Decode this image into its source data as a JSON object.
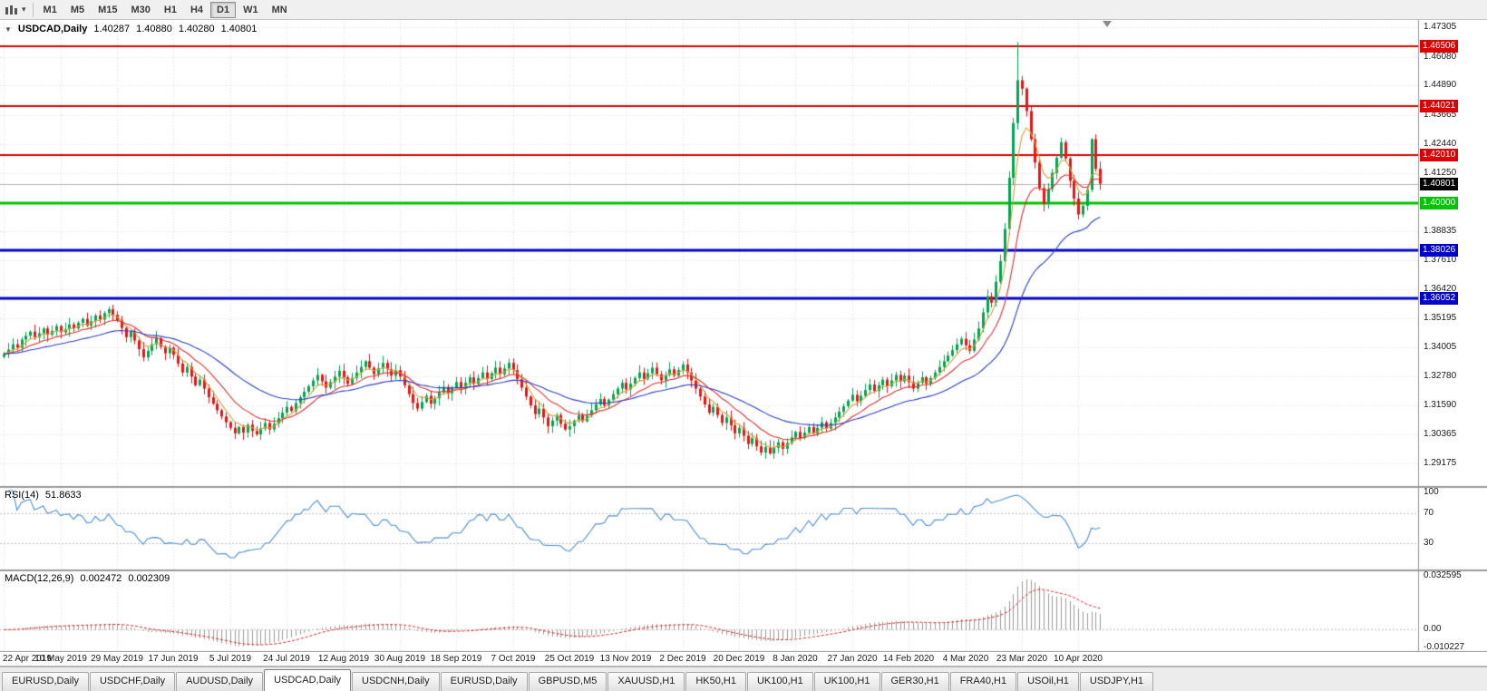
{
  "toolbar": {
    "chart_type_icon": "candlestick-chart-icon",
    "dropdown_caret": "▾",
    "timeframes": [
      "M1",
      "M5",
      "M15",
      "M30",
      "H1",
      "H4",
      "D1",
      "W1",
      "MN"
    ],
    "active_timeframe": "D1"
  },
  "chart_header": {
    "collapse_icon": "▼",
    "title": "USDCAD,Daily",
    "open": "1.40287",
    "high": "1.40880",
    "low": "1.40280",
    "close": "1.40801"
  },
  "rsi": {
    "label": "RSI(14)",
    "value": "51.8633",
    "levels": [
      "100",
      "70",
      "30"
    ],
    "line_color": "#4f8fd0"
  },
  "macd": {
    "label": "MACD(12,26,9)",
    "value_main": "0.002472",
    "value_signal": "0.002309",
    "axis": [
      "0.032595",
      "0.00",
      "-0.010227"
    ]
  },
  "tabs": {
    "items": [
      "EURUSD,Daily",
      "USDCHF,Daily",
      "AUDUSD,Daily",
      "USDCAD,Daily",
      "USDCNH,Daily",
      "EURUSD,Daily",
      "GBPUSD,M5",
      "XAUUSD,H1",
      "HK50,H1",
      "UK100,H1",
      "UK100,H1",
      "GER30,H1",
      "FRA40,H1",
      "USOil,H1",
      "USDJPY,H1"
    ],
    "active_index": 3
  },
  "colors": {
    "grid": "#dcdcdc",
    "axis_separator": "#9a9a9a",
    "current_price_line": "#b5b5b5",
    "histogram": "#9a9a9a",
    "signal": "#e02020"
  },
  "chart_data": {
    "type": "candlestick",
    "title": "USDCAD,Daily",
    "symbol": "USDCAD",
    "timeframe": "Daily",
    "x_labels": [
      "22 Apr 2019",
      "10 May 2019",
      "29 May 2019",
      "17 Jun 2019",
      "5 Jul 2019",
      "24 Jul 2019",
      "12 Aug 2019",
      "30 Aug 2019",
      "18 Sep 2019",
      "7 Oct 2019",
      "25 Oct 2019",
      "13 Nov 2019",
      "2 Dec 2019",
      "20 Dec 2019",
      "8 Jan 2020",
      "27 Jan 2020",
      "14 Feb 2020",
      "4 Mar 2020",
      "23 Mar 2020",
      "10 Apr 2020"
    ],
    "label_step": 13,
    "y_axis_labels": [
      "1.47305",
      "1.46080",
      "1.44890",
      "1.43665",
      "1.42440",
      "1.41250",
      "1.38835",
      "1.37610",
      "1.36420",
      "1.35195",
      "1.34005",
      "1.32780",
      "1.31590",
      "1.30365",
      "1.29175"
    ],
    "price_range": [
      1.2819,
      1.4761
    ],
    "current_price": 1.40801,
    "levels": [
      {
        "label": "1.46506",
        "price": 1.46506,
        "color": "#dd0000",
        "width": 2,
        "type": "resistance"
      },
      {
        "label": "1.44021",
        "price": 1.44021,
        "color": "#dd0000",
        "width": 2,
        "type": "resistance"
      },
      {
        "label": "1.42010",
        "price": 1.4201,
        "color": "#dd0000",
        "width": 2,
        "type": "resistance"
      },
      {
        "label": "1.40000",
        "price": 1.4,
        "color": "#00c400",
        "width": 3,
        "type": "pivot"
      },
      {
        "label": "1.38026",
        "price": 1.38026,
        "color": "#0000cc",
        "width": 3,
        "type": "support"
      },
      {
        "label": "1.36052",
        "price": 1.36052,
        "color": "#0000cc",
        "width": 3,
        "type": "support"
      }
    ],
    "moving_averages": [
      {
        "type": "ema",
        "period": 5,
        "color": "#d6a13d"
      },
      {
        "type": "ema",
        "period": 13,
        "color": "#e03131"
      },
      {
        "type": "ema",
        "period": 34,
        "color": "#2b3fc4"
      }
    ],
    "candle_up_color": "#00a651",
    "candle_down_color": "#e81515",
    "rsi_period": 14,
    "macd_params": {
      "fast": 12,
      "slow": 26,
      "signal": 9
    },
    "macd_range": [
      -0.010227,
      0.032595
    ],
    "rsi_range": [
      0,
      100
    ],
    "closes": [
      1.3372,
      1.339,
      1.3412,
      1.3398,
      1.3432,
      1.3448,
      1.3465,
      1.3442,
      1.3458,
      1.3478,
      1.3452,
      1.3468,
      1.3488,
      1.3462,
      1.3475,
      1.3495,
      1.3478,
      1.3502,
      1.3518,
      1.349,
      1.3508,
      1.3532,
      1.3515,
      1.3542,
      1.3558,
      1.3535,
      1.3512,
      1.348,
      1.3442,
      1.3465,
      1.3428,
      1.3392,
      1.3358,
      1.3385,
      1.3412,
      1.3438,
      1.3402,
      1.3375,
      1.3398,
      1.3368,
      1.3332,
      1.3295,
      1.3318,
      1.3278,
      1.3242,
      1.3265,
      1.3228,
      1.3192,
      1.3165,
      1.3138,
      1.3112,
      1.3088,
      1.3065,
      1.3042,
      1.3068,
      1.3045,
      1.3078,
      1.3052,
      1.3038,
      1.3062,
      1.3085,
      1.3058,
      1.3082,
      1.3105,
      1.3128,
      1.3152,
      1.3135,
      1.3168,
      1.3192,
      1.3215,
      1.3238,
      1.3262,
      1.3285,
      1.3258,
      1.3232,
      1.3255,
      1.3278,
      1.3302,
      1.3275,
      1.3248,
      1.3272,
      1.3295,
      1.3318,
      1.3342,
      1.3315,
      1.3288,
      1.3312,
      1.3335,
      1.3308,
      1.3282,
      1.3305,
      1.3278,
      1.3242,
      1.3205,
      1.3168,
      1.3145,
      1.3172,
      1.3198,
      1.3165,
      1.3188,
      1.3212,
      1.3235,
      1.3208,
      1.3232,
      1.3255,
      1.3228,
      1.3252,
      1.3275,
      1.3248,
      1.3272,
      1.3295,
      1.3268,
      1.3292,
      1.3315,
      1.3288,
      1.3312,
      1.3335,
      1.3305,
      1.3268,
      1.3232,
      1.3195,
      1.3158,
      1.3122,
      1.3145,
      1.3108,
      1.3072,
      1.3095,
      1.3118,
      1.3082,
      1.3058,
      1.3072,
      1.3095,
      1.3118,
      1.3092,
      1.3115,
      1.3138,
      1.3162,
      1.3185,
      1.3158,
      1.3182,
      1.3205,
      1.3228,
      1.3252,
      1.3225,
      1.3248,
      1.3272,
      1.3295,
      1.3268,
      1.3292,
      1.3315,
      1.3288,
      1.3262,
      1.3285,
      1.3308,
      1.3282,
      1.3305,
      1.3328,
      1.3295,
      1.3262,
      1.3228,
      1.3195,
      1.3162,
      1.3128,
      1.3152,
      1.3118,
      1.3085,
      1.3108,
      1.3075,
      1.3042,
      1.3065,
      1.3032,
      1.2998,
      1.3022,
      1.2988,
      1.2962,
      1.2985,
      1.2958,
      1.2982,
      1.3005,
      1.2978,
      1.3002,
      1.3025,
      1.3048,
      1.3022,
      1.3045,
      1.3068,
      1.3042,
      1.3065,
      1.3088,
      1.3062,
      1.3085,
      1.3108,
      1.3132,
      1.3155,
      1.3178,
      1.3202,
      1.3175,
      1.3198,
      1.3222,
      1.3245,
      1.3218,
      1.3242,
      1.3265,
      1.3238,
      1.3262,
      1.3285,
      1.3258,
      1.3282,
      1.3255,
      1.3228,
      1.3252,
      1.3275,
      1.3248,
      1.3272,
      1.3295,
      1.3318,
      1.3342,
      1.3365,
      1.3388,
      1.3412,
      1.3435,
      1.3408,
      1.3385,
      1.3432,
      1.3478,
      1.3545,
      1.3612,
      1.3585,
      1.3672,
      1.3758,
      1.3892,
      1.4105,
      1.4332,
      1.451,
      1.4475,
      1.4382,
      1.4265,
      1.4168,
      1.4062,
      1.3995,
      1.4058,
      1.4125,
      1.4188,
      1.4252,
      1.4185,
      1.4092,
      1.4018,
      1.3952,
      1.3988,
      1.4055,
      1.4265,
      1.4142,
      1.408
    ],
    "overrides": {
      "176": {
        "low": 1.2952
      },
      "233": {
        "high": 1.46684
      },
      "247": {
        "low": 1.393
      },
      "250": {
        "high": 1.427
      }
    }
  }
}
